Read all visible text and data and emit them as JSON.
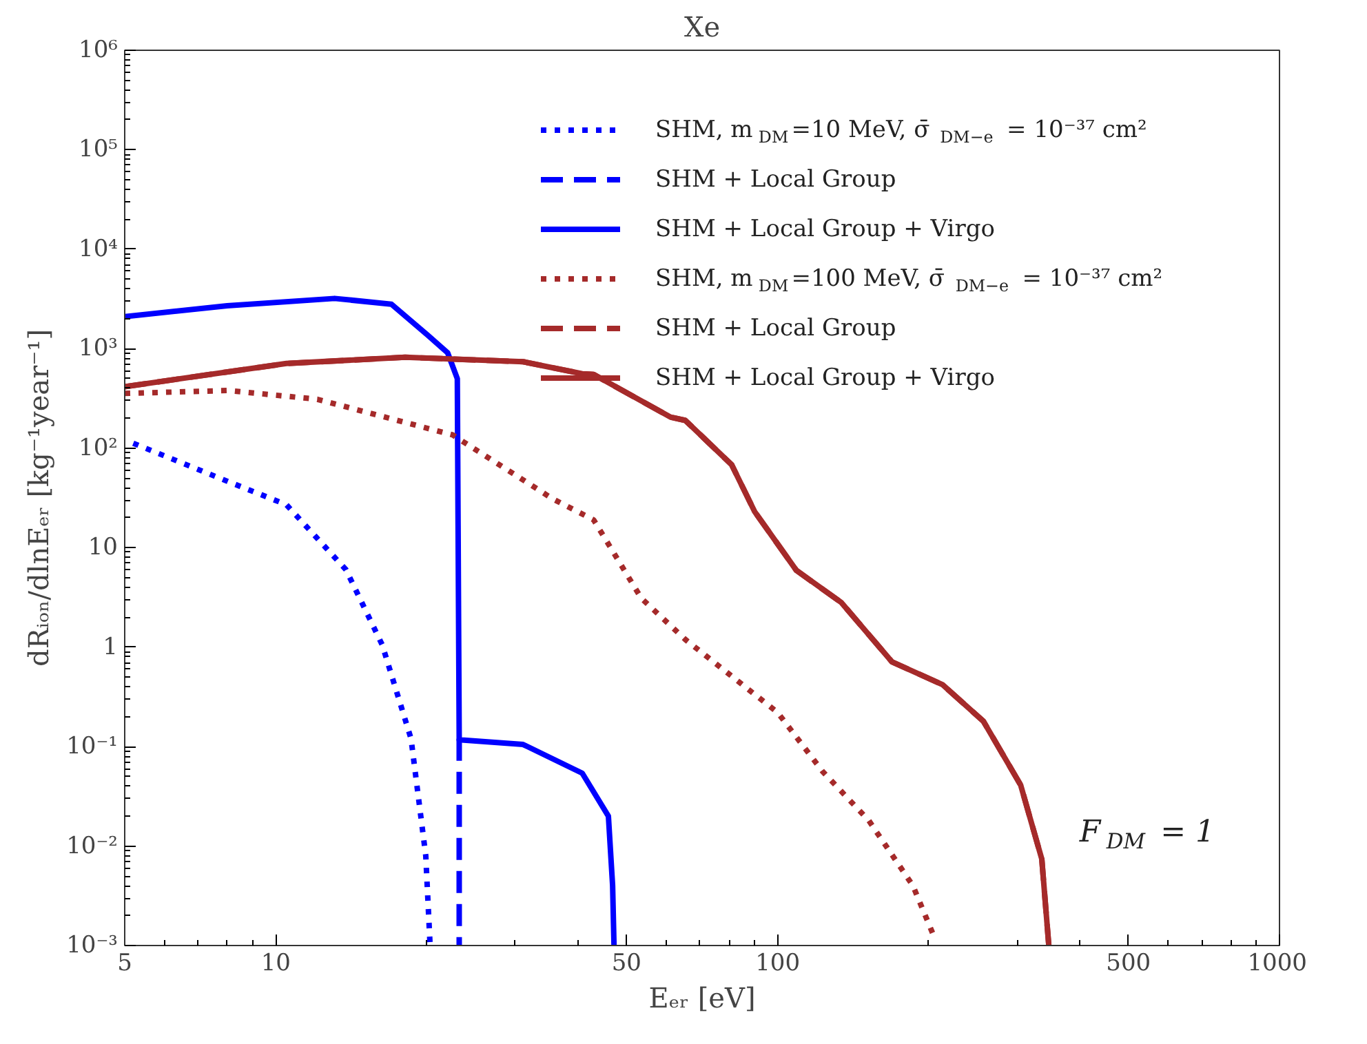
{
  "chart_data": {
    "type": "line",
    "title": "Xe",
    "xlabel": "Eₑᵣ [eV]",
    "ylabel": "dRᵢₒₙ/dlnEₑᵣ [kg⁻¹year⁻¹]",
    "log": "xy",
    "xlim": [
      5,
      1000
    ],
    "ylim": [
      0.001,
      1000000
    ],
    "xticks": [
      5,
      10,
      50,
      100,
      500,
      1000
    ],
    "yticks": [
      {
        "value": 0.001,
        "label": "10⁻³"
      },
      {
        "value": 0.01,
        "label": "10⁻²"
      },
      {
        "value": 0.1,
        "label": "10⁻¹"
      },
      1,
      10,
      {
        "value": 100,
        "label": "10²"
      },
      {
        "value": 1000,
        "label": "10³"
      },
      {
        "value": 10000,
        "label": "10⁴"
      },
      {
        "value": 100000,
        "label": "10⁵"
      },
      {
        "value": 1000000,
        "label": "10⁶"
      }
    ],
    "grid": false,
    "legend": "top right",
    "annotations": [
      "F$_{DM}$ = 1"
    ],
    "series": [
      {
        "name": "SHM, m$_{DM}$=10 MeV, σ̄$_{DM−e}$ = 10⁻³⁷ cm²",
        "color": "#0000ff",
        "line_style": "dotted",
        "x": [
          5.2,
          8.05,
          10.5,
          13.8,
          16.3,
          18.6,
          19.9,
          20.3
        ],
        "values": [
          112,
          46,
          27,
          6.0,
          1.05,
          0.12,
          0.008,
          0.001
        ]
      },
      {
        "name": "SHM + Local Group",
        "color": "#0000ff",
        "line_style": "dashed",
        "x": [
          23.2,
          23.2
        ],
        "values": [
          0.12,
          0.001
        ]
      },
      {
        "name": "SHM + Local Group + Virgo",
        "color": "#0000ff",
        "line_style": "solid",
        "x": [
          5,
          8,
          13.1,
          17,
          20.1,
          22,
          23.0,
          23.2,
          31.1,
          40.8,
          46,
          46.9,
          47.2
        ],
        "values": [
          2100,
          2700,
          3200,
          2800,
          1360,
          910,
          500,
          0.117,
          0.105,
          0.054,
          0.02,
          0.004,
          0.001
        ]
      },
      {
        "name": "SHM, m$_{DM}$=100 MeV, σ̄$_{DM−e}$ = 10⁻³⁷ cm²",
        "color": "#a52a2a",
        "line_style": "dotted",
        "x": [
          5,
          8.05,
          12.1,
          22.5,
          35.6,
          43,
          53.5,
          65.5,
          100,
          123,
          152,
          186,
          204
        ],
        "values": [
          355,
          380,
          310,
          136,
          31,
          19,
          3.1,
          1.19,
          0.22,
          0.056,
          0.018,
          0.004,
          0.0013
        ]
      },
      {
        "name": "SHM + Local Group",
        "color": "#a52a2a",
        "line_style": "dashed",
        "x": [
          5,
          10.5,
          18.1,
          31.1,
          40.8,
          43,
          61.2,
          65.5,
          81,
          90,
          109,
          134,
          169,
          213,
          257,
          305,
          336,
          347
        ],
        "values": [
          415,
          710,
          820,
          740,
          560,
          550,
          205,
          190,
          68,
          23,
          5.9,
          2.8,
          0.71,
          0.42,
          0.18,
          0.041,
          0.0074,
          0.001
        ]
      },
      {
        "name": "SHM + Local Group + Virgo",
        "color": "#a52a2a",
        "line_style": "solid",
        "x": [
          5,
          10.5,
          18.1,
          31.1,
          40.8,
          43,
          61.2,
          65.5,
          81,
          90,
          109,
          134,
          169,
          213,
          257,
          305,
          336,
          347
        ],
        "values": [
          415,
          710,
          820,
          740,
          560,
          550,
          205,
          190,
          68,
          23,
          5.9,
          2.8,
          0.71,
          0.42,
          0.18,
          0.041,
          0.0074,
          0.001
        ]
      }
    ]
  }
}
